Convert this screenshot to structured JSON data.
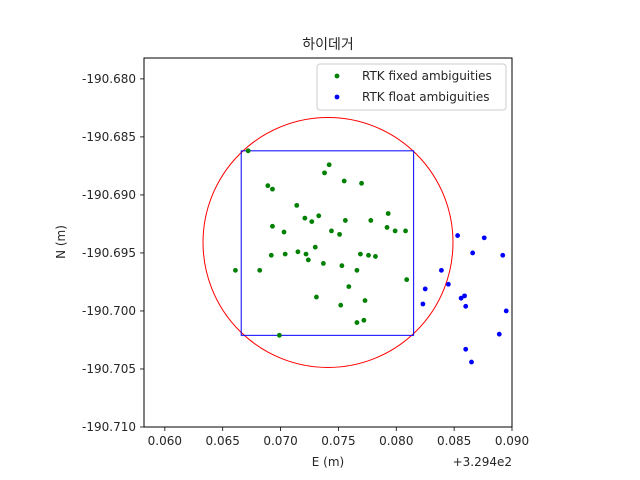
{
  "chart_data": {
    "type": "scatter",
    "title": "하이데거",
    "xlabel": "E (m)",
    "ylabel": "N (m)",
    "x_offset_label": "+3.294e2",
    "xlim": [
      0.0582,
      0.09
    ],
    "ylim": [
      -190.71,
      -190.6782
    ],
    "x_ticks": [
      0.06,
      0.065,
      0.07,
      0.075,
      0.08,
      0.085,
      0.09
    ],
    "x_tick_labels": [
      "0.060",
      "0.065",
      "0.070",
      "0.075",
      "0.080",
      "0.085",
      "0.090"
    ],
    "y_ticks": [
      -190.68,
      -190.685,
      -190.69,
      -190.695,
      -190.7,
      -190.705,
      -190.71
    ],
    "y_tick_labels": [
      "-190.680",
      "-190.685",
      "-190.690",
      "-190.695",
      "-190.700",
      "-190.705",
      "-190.710"
    ],
    "legend_position": "top-right",
    "series": [
      {
        "name": "RTK fixed ambiguities",
        "color": "#008000",
        "points": [
          [
            0.0672,
            -190.6862
          ],
          [
            0.0742,
            -190.6874
          ],
          [
            0.0738,
            -190.6881
          ],
          [
            0.0755,
            -190.6888
          ],
          [
            0.077,
            -190.689
          ],
          [
            0.0689,
            -190.6892
          ],
          [
            0.0693,
            -190.6895
          ],
          [
            0.0714,
            -190.6909
          ],
          [
            0.0793,
            -190.6916
          ],
          [
            0.0733,
            -190.6918
          ],
          [
            0.0721,
            -190.692
          ],
          [
            0.0756,
            -190.6922
          ],
          [
            0.0778,
            -190.6922
          ],
          [
            0.0727,
            -190.6923
          ],
          [
            0.0693,
            -190.6927
          ],
          [
            0.0792,
            -190.6928
          ],
          [
            0.0744,
            -190.6931
          ],
          [
            0.0799,
            -190.6931
          ],
          [
            0.0703,
            -190.6932
          ],
          [
            0.0808,
            -190.6931
          ],
          [
            0.0751,
            -190.6934
          ],
          [
            0.073,
            -190.6945
          ],
          [
            0.0715,
            -190.6949
          ],
          [
            0.0722,
            -190.6951
          ],
          [
            0.0704,
            -190.6951
          ],
          [
            0.0692,
            -190.6952
          ],
          [
            0.0769,
            -190.6951
          ],
          [
            0.0776,
            -190.6952
          ],
          [
            0.0782,
            -190.6953
          ],
          [
            0.0724,
            -190.6956
          ],
          [
            0.0737,
            -190.6959
          ],
          [
            0.0753,
            -190.6961
          ],
          [
            0.0661,
            -190.6965
          ],
          [
            0.0682,
            -190.6965
          ],
          [
            0.0766,
            -190.6965
          ],
          [
            0.0809,
            -190.6973
          ],
          [
            0.0759,
            -190.6979
          ],
          [
            0.0731,
            -190.6988
          ],
          [
            0.0773,
            -190.6991
          ],
          [
            0.0752,
            -190.6995
          ],
          [
            0.0772,
            -190.7008
          ],
          [
            0.0766,
            -190.701
          ],
          [
            0.0699,
            -190.7021
          ]
        ]
      },
      {
        "name": "RTK float ambiguities",
        "color": "#0000ff",
        "points": [
          [
            0.0853,
            -190.6935
          ],
          [
            0.0876,
            -190.6937
          ],
          [
            0.0866,
            -190.695
          ],
          [
            0.0892,
            -190.6952
          ],
          [
            0.0839,
            -190.6965
          ],
          [
            0.0845,
            -190.6977
          ],
          [
            0.0825,
            -190.6981
          ],
          [
            0.0859,
            -190.6987
          ],
          [
            0.0856,
            -190.6989
          ],
          [
            0.0823,
            -190.6994
          ],
          [
            0.086,
            -190.6996
          ],
          [
            0.0895,
            -190.7
          ],
          [
            0.0889,
            -190.702
          ],
          [
            0.086,
            -190.7033
          ],
          [
            0.0865,
            -190.7044
          ]
        ]
      }
    ],
    "overlays": {
      "circle": {
        "color": "#ff0000",
        "center": [
          0.0741,
          -190.6941
        ],
        "radius": 0.0108
      },
      "rectangle": {
        "color": "#0000ff",
        "x_range": [
          0.0666,
          0.0815
        ],
        "y_range": [
          -190.7021,
          -190.6862
        ]
      }
    }
  }
}
